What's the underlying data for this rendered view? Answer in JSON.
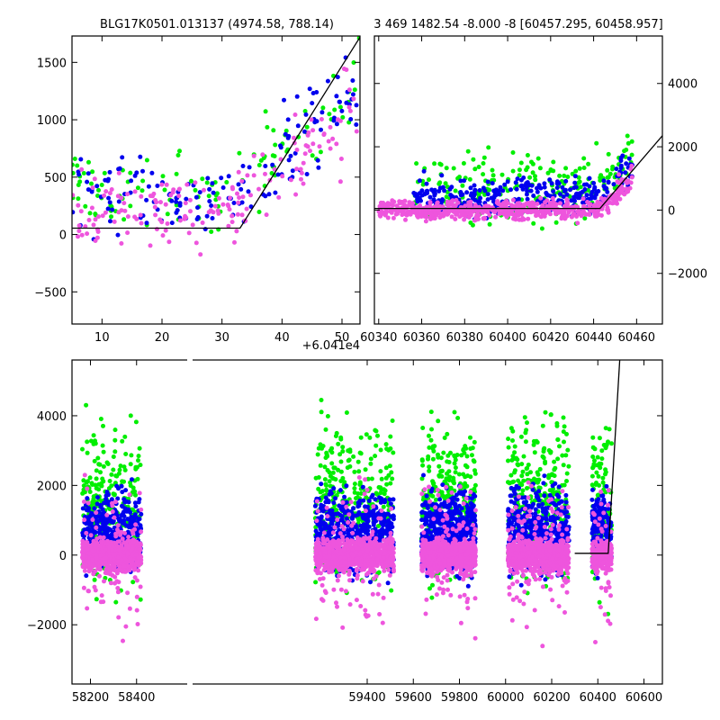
{
  "chart_data": [
    {
      "type": "scatter",
      "title": "BLG17K0501.013137 (4974.58, 788.14)",
      "offset_label": "+6.041e4",
      "xlim": [
        5,
        53
      ],
      "ylim": [
        -780,
        1730
      ],
      "xticks": [
        10,
        20,
        30,
        40,
        50
      ],
      "yticks": [
        -500,
        0,
        500,
        1000,
        1500
      ],
      "xtick_labels": [
        "10",
        "20",
        "30",
        "40",
        "50"
      ],
      "ytick_labels": [
        "−500",
        "0",
        "500",
        "1000",
        "1500"
      ],
      "colors": {
        "green": "#00ee00",
        "blue": "#0000ee",
        "pink": "#ee55dd"
      },
      "model_line": {
        "x": [
          5,
          33,
          53
        ],
        "y": [
          55,
          55,
          1720
        ]
      },
      "series": [
        {
          "color_key": "pink",
          "n": 170,
          "x_range": [
            5,
            53
          ],
          "y_center": 220,
          "y_spread": 380,
          "rise_after": 33,
          "rise_slope": 55
        },
        {
          "color_key": "blue",
          "n": 150,
          "x_range": [
            5,
            53
          ],
          "y_center": 380,
          "y_spread": 420,
          "rise_after": 33,
          "rise_slope": 55
        },
        {
          "color_key": "green",
          "n": 110,
          "x_range": [
            5,
            53
          ],
          "y_center": 400,
          "y_spread": 450,
          "rise_after": 33,
          "rise_slope": 55
        }
      ]
    },
    {
      "type": "scatter",
      "title": "3 469 1482.54 -8.000 -8 [60457.295, 60458.957]",
      "xlim": [
        60338,
        60472
      ],
      "ylim": [
        -3600,
        5500
      ],
      "xticks": [
        60340,
        60360,
        60380,
        60400,
        60420,
        60440,
        60460
      ],
      "yticks": [
        -2000,
        0,
        2000,
        4000
      ],
      "xtick_labels": [
        "60340",
        "60360",
        "60380",
        "60400",
        "60420",
        "60440",
        "60460"
      ],
      "ytick_labels": [
        "−2000",
        "0",
        "2000",
        "4000"
      ],
      "colors": {
        "green": "#00ee00",
        "blue": "#0000ee",
        "pink": "#ee55dd"
      },
      "model_line": {
        "x": [
          60338,
          60443,
          60472
        ],
        "y": [
          50,
          50,
          2350
        ]
      },
      "series": [
        {
          "color_key": "pink",
          "n": 600,
          "x_range": [
            60340,
            60458
          ],
          "y_center": 0,
          "y_spread": 350,
          "rise_after": 60443,
          "rise_slope": 80
        },
        {
          "color_key": "blue",
          "n": 320,
          "x_range": [
            60355,
            60458
          ],
          "y_center": 400,
          "y_spread": 700,
          "rise_after": 60443,
          "rise_slope": 80
        },
        {
          "color_key": "green",
          "n": 220,
          "x_range": [
            60355,
            60458
          ],
          "y_center": 700,
          "y_spread": 1300,
          "rise_after": 60443,
          "rise_slope": 80
        }
      ]
    },
    {
      "type": "scatter",
      "xlim": [
        58120,
        60680
      ],
      "ylim": [
        -3700,
        5600
      ],
      "xticks": [
        58200,
        58400,
        59400,
        59600,
        59800,
        60000,
        60200,
        60400,
        60600
      ],
      "yticks": [
        -2000,
        0,
        2000,
        4000
      ],
      "xtick_labels": [
        "58200",
        "58400",
        "59400",
        "59600",
        "59800",
        "60000",
        "60200",
        "60400",
        "60600"
      ],
      "ytick_labels": [
        "−2000",
        "0",
        "2000",
        "4000"
      ],
      "colors": {
        "green": "#00ee00",
        "blue": "#0000ee",
        "pink": "#ee55dd"
      },
      "model_line": {
        "x": [
          60300,
          60445,
          60495
        ],
        "y": [
          50,
          50,
          5600
        ]
      },
      "seasons": [
        {
          "x_range": [
            58165,
            58420
          ],
          "n": 700
        },
        {
          "x_range": [
            59175,
            59515
          ],
          "n": 900
        },
        {
          "x_range": [
            59635,
            59870
          ],
          "n": 900
        },
        {
          "x_range": [
            60010,
            60275
          ],
          "n": 800
        },
        {
          "x_range": [
            60375,
            60460
          ],
          "n": 300
        }
      ],
      "series": [
        {
          "color_key": "pink",
          "y_center": 0,
          "y_spread": 550
        },
        {
          "color_key": "blue",
          "y_center": 700,
          "y_spread": 1100
        },
        {
          "color_key": "green",
          "y_center": 1500,
          "y_spread": 2200
        }
      ]
    }
  ]
}
